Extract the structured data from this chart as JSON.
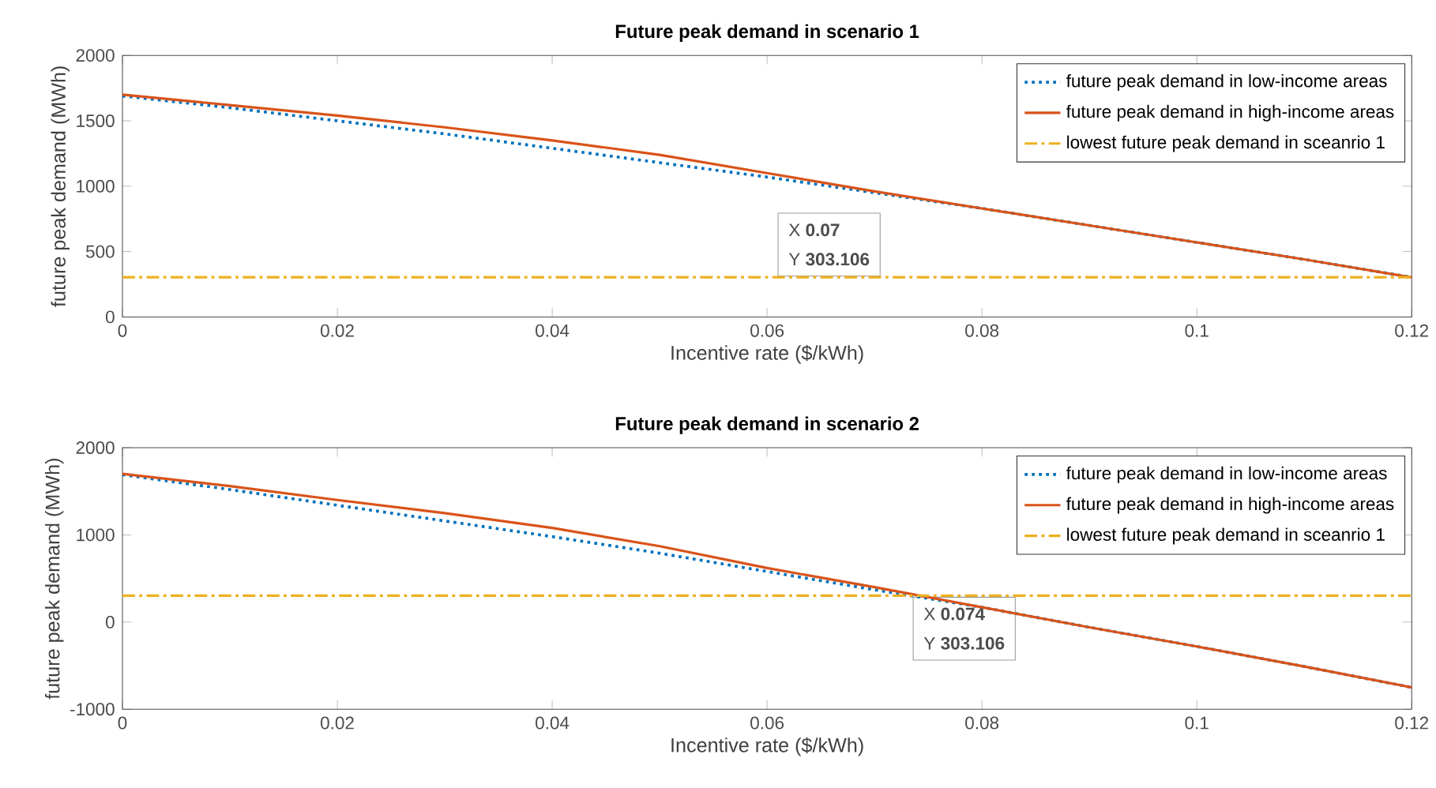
{
  "chart_data": [
    {
      "type": "line",
      "title": "Future peak demand in scenario 1",
      "xlabel": "Incentive rate ($/kWh)",
      "ylabel": "future peak demand (MWh)",
      "x": [
        0,
        0.01,
        0.02,
        0.03,
        0.04,
        0.05,
        0.06,
        0.07,
        0.08,
        0.09,
        0.1,
        0.11,
        0.12
      ],
      "series": [
        {
          "name": "future peak demand in low-income areas",
          "color": "#0072bd",
          "line_style": "dotted",
          "values": [
            1690,
            1600,
            1500,
            1400,
            1290,
            1180,
            1070,
            950,
            830,
            700,
            570,
            440,
            303
          ]
        },
        {
          "name": "future peak demand in high-income areas",
          "color": "#d95319",
          "line_style": "solid",
          "values": [
            1700,
            1620,
            1540,
            1450,
            1350,
            1240,
            1100,
            960,
            830,
            700,
            570,
            440,
            303
          ]
        }
      ],
      "ref_lines": [
        {
          "axis": "y",
          "value": 303.106,
          "label": "lowest future peak demand in sceanrio 1",
          "color": "#edb120",
          "line_style": "dashdot"
        }
      ],
      "annotations": [
        "X **0.07**",
        "Y **303.106**"
      ],
      "xlim": [
        0,
        0.12
      ],
      "xticks": [
        0,
        0.02,
        0.04,
        0.06,
        0.08,
        0.1,
        0.12
      ],
      "ylim": [
        0,
        2000
      ],
      "yticks": [
        0,
        500,
        1000,
        1500,
        2000
      ],
      "grid": false,
      "legend": "top right"
    },
    {
      "type": "line",
      "title": "Future peak demand in scenario 2",
      "xlabel": "Incentive rate ($/kWh)",
      "ylabel": "future peak demand  (MWh)",
      "x": [
        0,
        0.01,
        0.02,
        0.03,
        0.04,
        0.05,
        0.06,
        0.07,
        0.08,
        0.09,
        0.1,
        0.11,
        0.12
      ],
      "series": [
        {
          "name": "future peak demand  in low-income areas",
          "color": "#0072bd",
          "line_style": "dotted",
          "values": [
            1690,
            1520,
            1340,
            1160,
            980,
            790,
            580,
            370,
            170,
            -60,
            -280,
            -510,
            -750
          ]
        },
        {
          "name": "future peak demand  in high-income areas",
          "color": "#d95319",
          "line_style": "solid",
          "values": [
            1700,
            1560,
            1400,
            1250,
            1080,
            870,
            620,
            400,
            170,
            -60,
            -280,
            -510,
            -750
          ]
        }
      ],
      "ref_lines": [
        {
          "axis": "y",
          "value": 303.106,
          "label": "lowest future peak demand in sceanrio 1",
          "color": "#edb120",
          "line_style": "dashdot"
        }
      ],
      "annotations": [
        "X **0.074**",
        "Y **303.106**"
      ],
      "xlim": [
        0,
        0.12
      ],
      "xticks": [
        0,
        0.02,
        0.04,
        0.06,
        0.08,
        0.1,
        0.12
      ],
      "ylim": [
        -1000,
        2000
      ],
      "yticks": [
        -1000,
        0,
        1000,
        2000
      ],
      "grid": false,
      "legend": "top right"
    }
  ]
}
